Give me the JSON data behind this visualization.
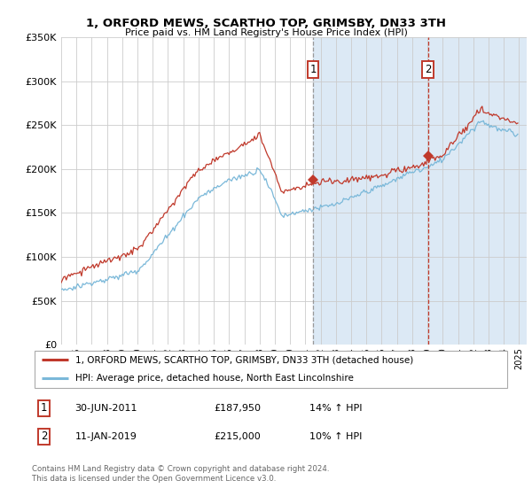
{
  "title": "1, ORFORD MEWS, SCARTHO TOP, GRIMSBY, DN33 3TH",
  "subtitle": "Price paid vs. HM Land Registry's House Price Index (HPI)",
  "legend_line1": "1, ORFORD MEWS, SCARTHO TOP, GRIMSBY, DN33 3TH (detached house)",
  "legend_line2": "HPI: Average price, detached house, North East Lincolnshire",
  "annotation1_label": "1",
  "annotation1_date": "30-JUN-2011",
  "annotation1_price": "£187,950",
  "annotation1_hpi": "14% ↑ HPI",
  "annotation2_label": "2",
  "annotation2_date": "11-JAN-2019",
  "annotation2_price": "£215,000",
  "annotation2_hpi": "10% ↑ HPI",
  "footer": "Contains HM Land Registry data © Crown copyright and database right 2024.\nThis data is licensed under the Open Government Licence v3.0.",
  "sale1_x": 2011.5,
  "sale1_y": 187950,
  "sale2_x": 2019.03,
  "sale2_y": 215000,
  "hpi_color": "#7ab8d9",
  "price_color": "#c0392b",
  "highlight_color": "#dce9f5",
  "vline1_color": "#999999",
  "vline2_color": "#c0392b",
  "ylim_min": 0,
  "ylim_max": 350000,
  "xlim_min": 1995,
  "xlim_max": 2025.5,
  "yticks": [
    0,
    50000,
    100000,
    150000,
    200000,
    250000,
    300000,
    350000
  ],
  "background_color": "#ffffff",
  "grid_color": "#cccccc"
}
